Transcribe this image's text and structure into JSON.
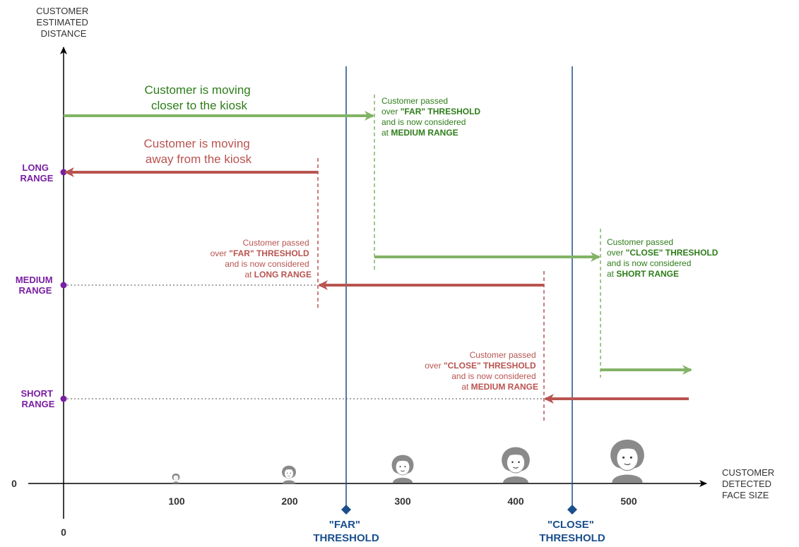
{
  "axes": {
    "y_label": [
      "CUSTOMER",
      "ESTIMATED",
      "DISTANCE"
    ],
    "x_label": [
      "CUSTOMER",
      "DETECTED",
      "FACE SIZE"
    ],
    "y_zero": "0",
    "x_zero": "0"
  },
  "ranges": {
    "long": [
      "LONG",
      "RANGE"
    ],
    "medium": [
      "MEDIUM",
      "RANGE"
    ],
    "short": [
      "SHORT",
      "RANGE"
    ]
  },
  "ticks": [
    "100",
    "200",
    "300",
    "400",
    "500"
  ],
  "thresholds": {
    "far": [
      "\"FAR\"",
      "THRESHOLD"
    ],
    "close": [
      "\"CLOSE\"",
      "THRESHOLD"
    ]
  },
  "captions": {
    "moving_closer": [
      "Customer is moving",
      "closer to the kiosk"
    ],
    "moving_away": [
      "Customer is moving",
      "away from the kiosk"
    ]
  },
  "notes": {
    "green_far": {
      "line1": "Customer passed",
      "line2_pre": "over ",
      "line2_bold": "\"FAR\" THRESHOLD",
      "line3": "and is now considered",
      "line4_pre": "at ",
      "line4_bold": "MEDIUM RANGE"
    },
    "green_close": {
      "line1": "Customer passed",
      "line2_pre": "over ",
      "line2_bold": "\"CLOSE\" THRESHOLD",
      "line3": "and is now considered",
      "line4_pre": "at ",
      "line4_bold": "SHORT RANGE"
    },
    "red_far": {
      "line1": "Customer passed",
      "line2_pre": "over ",
      "line2_bold": "\"FAR\" THRESHOLD",
      "line3": "and is now considered",
      "line4_pre": "at ",
      "line4_bold": "LONG RANGE"
    },
    "red_close": {
      "line1": "Customer passed",
      "line2_pre": "over ",
      "line2_bold": "\"CLOSE\" THRESHOLD",
      "line3": "and is now considered",
      "line4_pre": "at ",
      "line4_bold": "MEDIUM RANGE"
    }
  },
  "colors": {
    "green": "#82b366",
    "green_text": "#2e7d1a",
    "red": "#b85450",
    "blue": "#1a4f8c",
    "purple": "#7a1fa2",
    "face_gray": "#8a8a8a"
  }
}
